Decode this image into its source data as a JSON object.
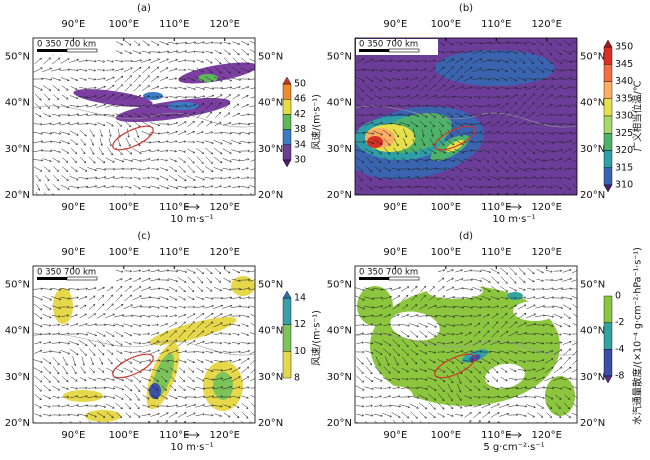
{
  "lon_labels": [
    "90°E",
    "100°E",
    "110°E",
    "120°E"
  ],
  "lat_labels": [
    "50°N",
    "40°N",
    "30°N",
    "20°N"
  ],
  "scale_bar": "0  350 700 km",
  "panels": [
    {
      "label": "(a)",
      "colorbar_title": "风速/(m·s⁻¹)",
      "colorbar_ticks": [
        "50",
        "46",
        "42",
        "38",
        "34",
        "30"
      ],
      "vector_label": "10 m·s⁻¹"
    },
    {
      "label": "(b)",
      "colorbar_title": "广义相当位温/℃",
      "colorbar_ticks": [
        "350",
        "345",
        "340",
        "335",
        "330",
        "325",
        "320",
        "315",
        "310"
      ],
      "vector_label": "10 m·s⁻¹"
    },
    {
      "label": "(c)",
      "colorbar_title": "风速/(m·s⁻¹)",
      "colorbar_ticks": [
        "14",
        "12",
        "10",
        "8"
      ],
      "vector_label": "10 m·s⁻¹"
    },
    {
      "label": "(d)",
      "colorbar_title": "水汽通量散度/(×10⁻⁴ g·cm⁻²·hPa⁻¹·s⁻¹)",
      "colorbar_ticks": [
        "0",
        "-2",
        "-4",
        "-8"
      ],
      "vector_label": "5 g·cm⁻²·s⁻¹"
    }
  ]
}
